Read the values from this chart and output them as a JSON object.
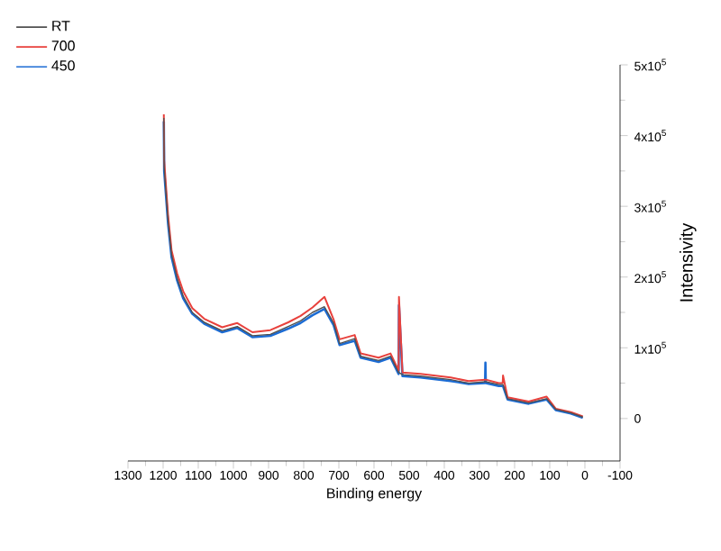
{
  "chart_data": {
    "type": "line",
    "xlabel": "Binding energy",
    "ylabel": "Intensivity",
    "x": [
      1198,
      1197,
      1186,
      1176,
      1160,
      1143,
      1117,
      1083,
      1032,
      989,
      946,
      895,
      844,
      809,
      775,
      741,
      715,
      698,
      655,
      638,
      587,
      553,
      530,
      529,
      519,
      468,
      382,
      331,
      284,
      283,
      282,
      245,
      234,
      233,
      220,
      160,
      109,
      83,
      40,
      6
    ],
    "series": [
      {
        "name": "RT",
        "color": "#505050",
        "values": [
          425000,
          355000,
          280000,
          232000,
          198000,
          173000,
          150000,
          136000,
          124000,
          130000,
          117000,
          119000,
          130000,
          138000,
          150000,
          158000,
          135000,
          106000,
          113000,
          88000,
          82000,
          88000,
          65000,
          65000,
          62000,
          60000,
          55000,
          50000,
          52000,
          52000,
          52000,
          48000,
          48000,
          48000,
          28000,
          22000,
          28000,
          13000,
          8000,
          2000
        ]
      },
      {
        "name": "700",
        "color": "#e8413c",
        "values": [
          430000,
          365000,
          288000,
          238000,
          205000,
          180000,
          156000,
          141000,
          129000,
          135000,
          122000,
          125000,
          136000,
          145000,
          157000,
          172000,
          140000,
          112000,
          118000,
          92000,
          86000,
          92000,
          68000,
          172000,
          65000,
          63000,
          58000,
          53000,
          55000,
          55000,
          55000,
          50000,
          50000,
          61000,
          30000,
          24000,
          31000,
          14000,
          9000,
          3000
        ]
      },
      {
        "name": "450",
        "color": "#1c6cd4",
        "values": [
          420000,
          350000,
          276000,
          228000,
          195000,
          170000,
          148000,
          134000,
          122000,
          128000,
          115000,
          117000,
          127000,
          135000,
          146000,
          155000,
          132000,
          104000,
          110000,
          86000,
          80000,
          86000,
          63000,
          160000,
          60000,
          58000,
          53000,
          49000,
          50000,
          79000,
          50000,
          46000,
          46000,
          46000,
          27000,
          21000,
          27000,
          12000,
          7000,
          1000
        ]
      }
    ],
    "xlim": [
      1300,
      -100
    ],
    "xticks": [
      1300,
      1200,
      1100,
      1000,
      900,
      800,
      700,
      600,
      500,
      400,
      300,
      200,
      100,
      0,
      -100
    ],
    "ylim": [
      -60000,
      500000
    ],
    "yticks": [
      {
        "value": 0,
        "label": "0"
      },
      {
        "value": 100000,
        "label": "1x10$^{5}$"
      },
      {
        "value": 200000,
        "label": "2x10$^{5}$"
      },
      {
        "value": 300000,
        "label": "3x10$^{5}$"
      },
      {
        "value": 400000,
        "label": "4x10$^{5}$"
      },
      {
        "value": 500000,
        "label": "5x10$^{5}$"
      }
    ],
    "grid": false,
    "legend": "top left"
  }
}
